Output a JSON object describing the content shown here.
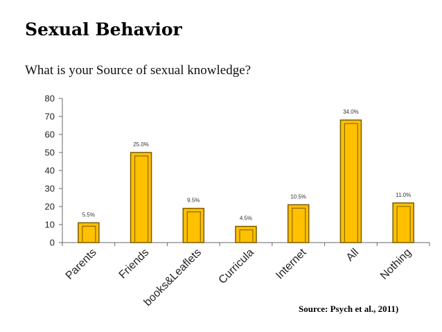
{
  "slide": {
    "title": "Sexual Behavior",
    "subtitle": "What is your Source of sexual knowledge?",
    "source": "Source: Psych et al., 2011)"
  },
  "colors": {
    "bar_fill": "#FFC000",
    "bar_edge": "#7A5A00",
    "bar_inner_line": "#8C6A00",
    "axis": "#666666"
  },
  "chart_data": {
    "type": "bar",
    "title": "",
    "xlabel": "",
    "ylabel": "",
    "categories": [
      "Parents",
      "Friends",
      "books&Leaflets",
      "Curricula",
      "Internet",
      "All",
      "Nothing"
    ],
    "values": [
      11,
      50,
      19,
      9,
      21,
      68,
      22
    ],
    "data_labels": [
      "5.5%",
      "25.0%",
      "9.5%",
      "4.5%",
      "10.5%",
      "34.0%",
      "11.0%"
    ],
    "ylim": [
      0,
      80
    ],
    "yticks": [
      0,
      10,
      20,
      30,
      40,
      50,
      60,
      70,
      80
    ],
    "grid": false,
    "legend": "none"
  }
}
